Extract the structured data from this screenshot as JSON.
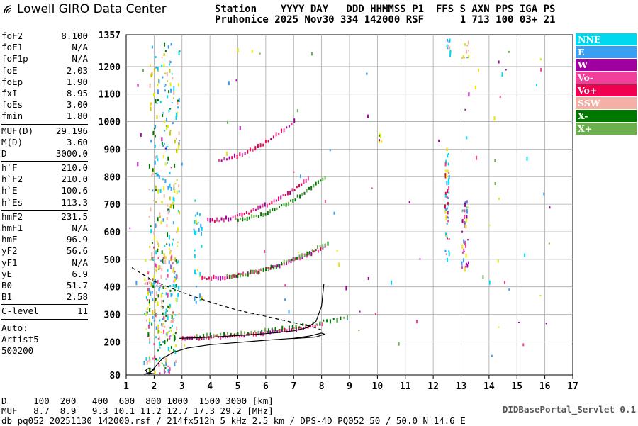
{
  "logo": {
    "text": "Lowell GIRO Data Center"
  },
  "header": {
    "line1": "Station    YYYY DAY   DDD HHMMSS P1  FFS S AXN PPS IGA PS",
    "line2": "Pruhonice 2025 Nov30 334 142000 RSF      1 713 100 03+ 21"
  },
  "params": {
    "groups": [
      [
        {
          "name": "foF2",
          "value": "8.100"
        },
        {
          "name": "foF1",
          "value": "N/A"
        },
        {
          "name": "foF1p",
          "value": "N/A"
        },
        {
          "name": "foE",
          "value": "2.03"
        },
        {
          "name": "foEp",
          "value": "1.90"
        },
        {
          "name": "fxI",
          "value": "8.95"
        },
        {
          "name": "foEs",
          "value": "3.00"
        },
        {
          "name": "fmin",
          "value": "1.80"
        }
      ],
      [
        {
          "name": "MUF(D)",
          "value": "29.196"
        },
        {
          "name": "M(D)",
          "value": "3.60"
        },
        {
          "name": "D",
          "value": "3000.0"
        }
      ],
      [
        {
          "name": "h`F",
          "value": "210.0"
        },
        {
          "name": "h`F2",
          "value": "210.0"
        },
        {
          "name": "h`E",
          "value": "100.6"
        },
        {
          "name": "h`Es",
          "value": "113.3"
        }
      ],
      [
        {
          "name": "hmF2",
          "value": "231.5"
        },
        {
          "name": "hmF1",
          "value": "N/A"
        },
        {
          "name": "hmE",
          "value": "96.9"
        },
        {
          "name": "yF2",
          "value": "56.6"
        },
        {
          "name": "yF1",
          "value": "N/A"
        },
        {
          "name": "yE",
          "value": "6.9"
        },
        {
          "name": "B0",
          "value": "51.7"
        },
        {
          "name": "B1",
          "value": "2.58"
        }
      ],
      [
        {
          "name": "C-level",
          "value": "11"
        }
      ]
    ],
    "auto": [
      "Auto:",
      "Artist5",
      "500200"
    ]
  },
  "legend": [
    {
      "label": "NNE",
      "color": "#00d8f0"
    },
    {
      "label": "E",
      "color": "#3a9ff0"
    },
    {
      "label": "W",
      "color": "#a000a0"
    },
    {
      "label": "Vo-",
      "color": "#f0409a"
    },
    {
      "label": "Vo+",
      "color": "#f00050"
    },
    {
      "label": "SSW",
      "color": "#f4b0a6"
    },
    {
      "label": "X-",
      "color": "#007800"
    },
    {
      "label": "X+",
      "color": "#6cb04e"
    }
  ],
  "footer": {
    "d_line": "D     100  200   400  600  800 1000  1500 3000 [km]",
    "muf_line": "MUF   8.7  8.9   9.3 10.1 11.2 12.7 17.3 29.2 [MHz]",
    "db_line": "db pq052 20251130 142000.rsf / 214fx512h 5 kHz 2.5 km / DPS-4D PQ052 50 / 50.0 N 14.6 E",
    "credit": "DIDBasePortal_Servlet 0.1"
  },
  "chart_data": {
    "type": "scatter",
    "title": "",
    "xlabel": "",
    "ylabel": "",
    "xlim": [
      1,
      17
    ],
    "ylim": [
      80,
      1357
    ],
    "x_ticks": [
      "1",
      "2",
      "3",
      "4",
      "5",
      "6",
      "7",
      "8",
      "9",
      "10",
      "11",
      "12",
      "13",
      "14",
      "15",
      "16",
      "17"
    ],
    "y_ticks": [
      {
        "value": 80,
        "label": "80"
      },
      {
        "value": 200,
        "label": "200"
      },
      {
        "value": 300,
        "label": "300"
      },
      {
        "value": 400,
        "label": "400"
      },
      {
        "value": 500,
        "label": "500"
      },
      {
        "value": 600,
        "label": "600"
      },
      {
        "value": 700,
        "label": "700"
      },
      {
        "value": 800,
        "label": "800"
      },
      {
        "value": 900,
        "label": "900"
      },
      {
        "value": 1000,
        "label": "1000"
      },
      {
        "value": 1100,
        "label": "1100"
      },
      {
        "value": 1200,
        "label": "1200"
      },
      {
        "value": 1357,
        "label": "1357"
      }
    ],
    "grid": true,
    "echo_traces": [
      {
        "mode": "O",
        "from": [
          3.0,
          212
        ],
        "to": [
          8.0,
          262
        ],
        "curve": 1.6,
        "n": 60,
        "colors": [
          "#f00050",
          "#f0409a",
          "#a000a0"
        ]
      },
      {
        "mode": "X",
        "from": [
          3.5,
          222
        ],
        "to": [
          8.9,
          290
        ],
        "curve": 1.7,
        "n": 45,
        "colors": [
          "#007800",
          "#6cb04e"
        ]
      },
      {
        "mode": "O",
        "from": [
          3.7,
          430
        ],
        "to": [
          8.1,
          545
        ],
        "curve": 1.8,
        "n": 55,
        "colors": [
          "#f00050",
          "#f0409a",
          "#a000a0"
        ]
      },
      {
        "mode": "X",
        "from": [
          4.6,
          440
        ],
        "to": [
          8.2,
          560
        ],
        "curve": 1.7,
        "n": 40,
        "colors": [
          "#6cb04e",
          "#007800"
        ]
      },
      {
        "mode": "O",
        "from": [
          3.9,
          640
        ],
        "to": [
          7.5,
          790
        ],
        "curve": 1.8,
        "n": 45,
        "colors": [
          "#f00050",
          "#f0409a",
          "#a000a0"
        ]
      },
      {
        "mode": "X",
        "from": [
          4.9,
          645
        ],
        "to": [
          8.1,
          800
        ],
        "curve": 1.8,
        "n": 40,
        "colors": [
          "#6cb04e",
          "#007800"
        ]
      },
      {
        "mode": "O",
        "from": [
          4.3,
          860
        ],
        "to": [
          7.0,
          1000
        ],
        "curve": 1.6,
        "n": 30,
        "colors": [
          "#f00050",
          "#f0409a",
          "#a000a0"
        ]
      }
    ],
    "scatter_clusters": [
      {
        "x": [
          1.8,
          2.9
        ],
        "y": [
          270,
          1290
        ],
        "n": 260,
        "colors": [
          "#e8e800",
          "#c8c800",
          "#f4b0a6",
          "#00d8f0",
          "#3a9ff0",
          "#007800"
        ]
      },
      {
        "x": [
          1.6,
          2.8
        ],
        "y": [
          85,
          520
        ],
        "n": 200,
        "colors": [
          "#e8e800",
          "#f4b0a6",
          "#00d8f0",
          "#3a9ff0",
          "#f0409a",
          "#007800"
        ]
      },
      {
        "x": [
          12.4,
          12.55
        ],
        "y": [
          480,
          900
        ],
        "n": 50,
        "colors": [
          "#00d8f0",
          "#f00050",
          "#f0409a",
          "#3a9ff0",
          "#e8e800"
        ]
      },
      {
        "x": [
          13.0,
          13.25
        ],
        "y": [
          470,
          710
        ],
        "n": 40,
        "colors": [
          "#f0409a",
          "#e8e800",
          "#3a9ff0",
          "#a000a0"
        ]
      },
      {
        "x": [
          12.45,
          12.6
        ],
        "y": [
          1230,
          1300
        ],
        "n": 10,
        "colors": [
          "#00d8f0",
          "#3a9ff0",
          "#f4b0a6"
        ]
      },
      {
        "x": [
          13.0,
          13.25
        ],
        "y": [
          1230,
          1290
        ],
        "n": 10,
        "colors": [
          "#e8e800",
          "#3a9ff0",
          "#f4b0a6"
        ]
      },
      {
        "x": [
          3.4,
          3.7
        ],
        "y": [
          300,
          720
        ],
        "n": 30,
        "colors": [
          "#e8e800",
          "#00d8f0",
          "#3a9ff0"
        ]
      },
      {
        "x": [
          10.0,
          10.15
        ],
        "y": [
          900,
          960
        ],
        "n": 6,
        "colors": [
          "#007800",
          "#e8e800",
          "#f0409a"
        ]
      },
      {
        "x": [
          1.0,
          16.5
        ],
        "y": [
          80,
          1300
        ],
        "n": 90,
        "colors": [
          "#00d8f0",
          "#3a9ff0",
          "#f0409a",
          "#e8e800",
          "#6cb04e",
          "#a000a0"
        ]
      }
    ],
    "profile_curves": [
      {
        "name": "virtual-height-trace",
        "style": "solid",
        "points": [
          [
            2.9,
            213
          ],
          [
            4.0,
            217
          ],
          [
            5.0,
            223
          ],
          [
            6.0,
            230
          ],
          [
            7.0,
            240
          ],
          [
            7.5,
            252
          ],
          [
            7.8,
            275
          ],
          [
            8.0,
            330
          ],
          [
            8.08,
            410
          ]
        ]
      },
      {
        "name": "extraordinary-trace",
        "style": "solid",
        "points": [
          [
            1.8,
            82
          ],
          [
            2.0,
            105
          ],
          [
            2.3,
            140
          ],
          [
            2.7,
            163
          ],
          [
            3.2,
            178
          ],
          [
            4.0,
            190
          ],
          [
            5.0,
            198
          ],
          [
            6.0,
            206
          ],
          [
            7.0,
            213
          ],
          [
            7.6,
            222
          ],
          [
            8.0,
            232
          ],
          [
            8.1,
            228
          ],
          [
            7.8,
            218
          ],
          [
            7.0,
            212
          ]
        ]
      },
      {
        "name": "electron-density-profile",
        "style": "dashed",
        "points": [
          [
            1.2,
            470
          ],
          [
            2.0,
            420
          ],
          [
            3.0,
            380
          ],
          [
            4.0,
            345
          ],
          [
            5.0,
            315
          ],
          [
            6.0,
            293
          ],
          [
            7.0,
            270
          ],
          [
            7.6,
            257
          ],
          [
            8.1,
            240
          ]
        ]
      },
      {
        "name": "e-layer-curve",
        "style": "solid",
        "points": [
          [
            1.65,
            82
          ],
          [
            1.9,
            92
          ],
          [
            2.0,
            100
          ],
          [
            1.8,
            104
          ],
          [
            1.7,
            97
          ],
          [
            1.75,
            88
          ],
          [
            2.0,
            84
          ]
        ]
      }
    ]
  }
}
